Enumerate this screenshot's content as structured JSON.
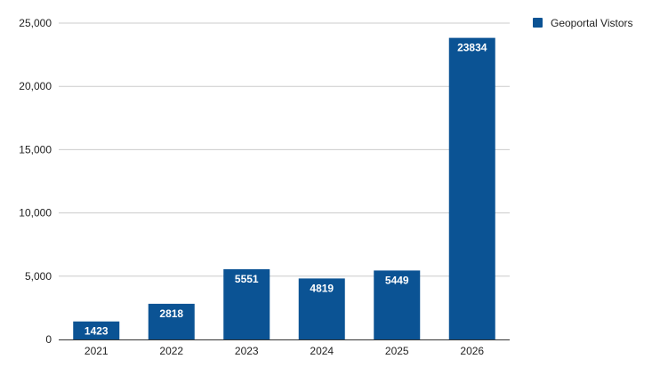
{
  "chart_data": {
    "type": "bar",
    "title": "",
    "xlabel": "",
    "ylabel": "",
    "categories": [
      "2021",
      "2022",
      "2023",
      "2024",
      "2025",
      "2026"
    ],
    "series": [
      {
        "name": "Geoportal Vistors",
        "values": [
          1423,
          2818,
          5551,
          4819,
          5449,
          23834
        ],
        "color": "#0b5394"
      }
    ],
    "data_labels": [
      "1423",
      "2818",
      "5551",
      "4819",
      "5449",
      "23834"
    ],
    "ylim": [
      0,
      25000
    ],
    "yticks": [
      0,
      5000,
      10000,
      15000,
      20000,
      25000
    ],
    "ytick_labels": [
      "0",
      "5,000",
      "10,000",
      "15,000",
      "20,000",
      "25,000"
    ],
    "grid": true,
    "legend_position": "top-right"
  }
}
